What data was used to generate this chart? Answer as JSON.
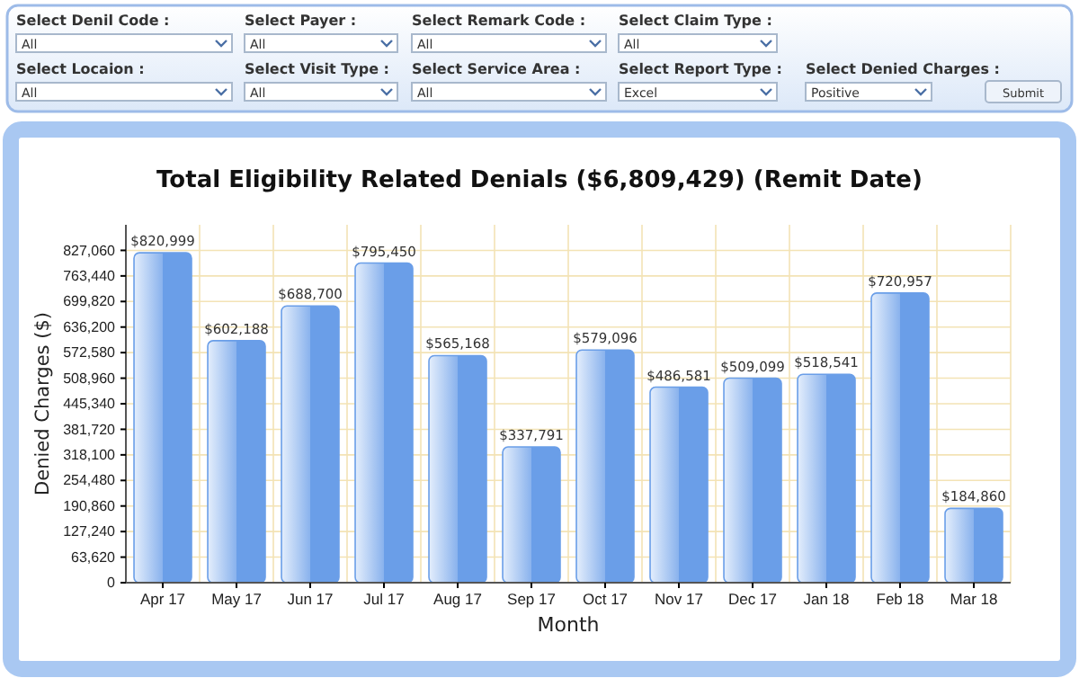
{
  "chart_data": {
    "type": "bar",
    "title": "Total Eligibility Related Denials ($6,809,429) (Remit Date)",
    "xlabel": "Month",
    "ylabel": "Denied Charges ($)",
    "categories": [
      "Apr 17",
      "May 17",
      "Jun 17",
      "Jul 17",
      "Aug 17",
      "Sep 17",
      "Oct 17",
      "Nov 17",
      "Dec 17",
      "Jan 18",
      "Feb 18",
      "Mar 18"
    ],
    "values": [
      820999,
      602188,
      688700,
      795450,
      565168,
      337791,
      579096,
      486581,
      509099,
      518541,
      720957,
      184860
    ],
    "value_labels": [
      "$820,999",
      "$602,188",
      "$688,700",
      "$795,450",
      "$565,168",
      "$337,791",
      "$579,096",
      "$486,581",
      "$509,099",
      "$518,541",
      "$720,957",
      "$184,860"
    ],
    "color": "#6a9ee8",
    "ylim": [
      0,
      890680
    ],
    "yticks": [
      0,
      {
        "value": 63620,
        "label": "63,620"
      },
      {
        "value": 127240,
        "label": "127,240"
      },
      {
        "value": 190860,
        "label": "190,860"
      },
      {
        "value": 254480,
        "label": "254,480"
      },
      {
        "value": 318100,
        "label": "318,100"
      },
      {
        "value": 381720,
        "label": "381,720"
      },
      {
        "value": 445340,
        "label": "445,340"
      },
      {
        "value": 508960,
        "label": "508,960"
      },
      {
        "value": 572580,
        "label": "572,580"
      },
      {
        "value": 636200,
        "label": "636,200"
      },
      {
        "value": 699820,
        "label": "699,820"
      },
      {
        "value": 763440,
        "label": "763,440"
      },
      {
        "value": 827060,
        "label": "827,060"
      }
    ],
    "grid": true,
    "annotations": [
      "Select Denil Code :",
      "All",
      "Select Payer :",
      "All",
      "Select Remark Code :",
      "All",
      "Select Claim Type :",
      "All",
      "Select Locaion :",
      "All",
      "Select Visit Type :",
      "All",
      "Select Service Area :",
      "All",
      "Select Report Type :",
      "Excel",
      "Select Denied Charges :",
      "Positive",
      "Submit"
    ]
  }
}
